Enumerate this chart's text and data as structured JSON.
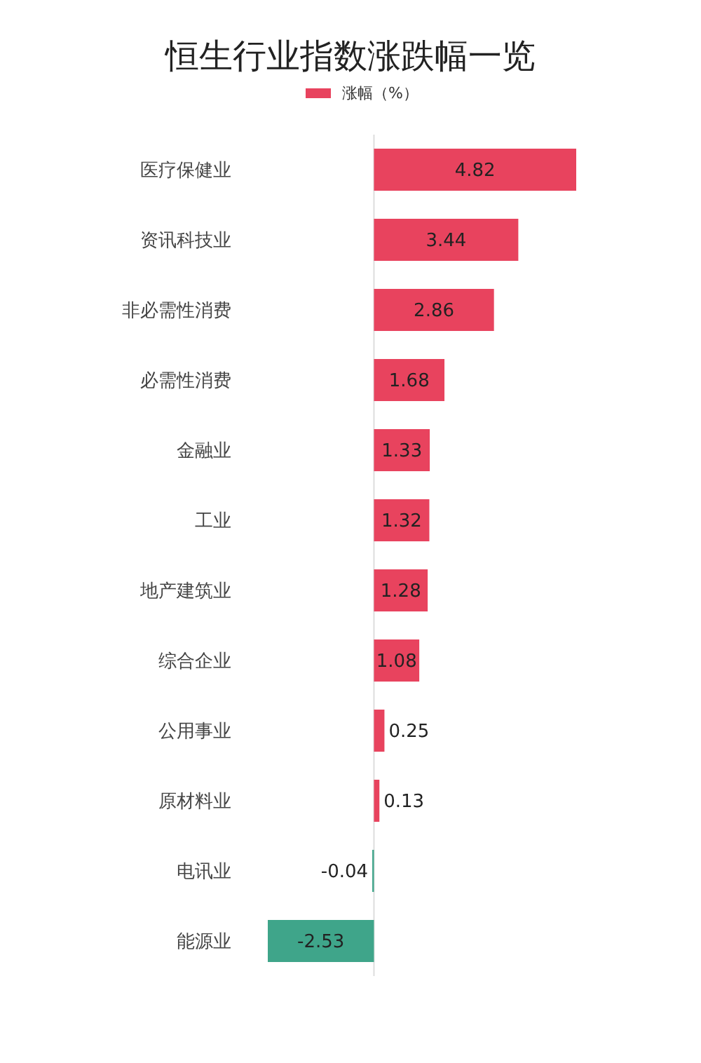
{
  "chart_data": {
    "type": "bar",
    "orientation": "horizontal",
    "title": "恒生行业指数涨跌幅一览",
    "categories": [
      "医疗保健业",
      "资讯科技业",
      "非必需性消费",
      "必需性消费",
      "金融业",
      "工业",
      "地产建筑业",
      "综合企业",
      "公用事业",
      "原材料业",
      "电讯业",
      "能源业"
    ],
    "series": [
      {
        "name": "涨幅（%）",
        "color": "#e8435e",
        "colors": [
          "#e8435e",
          "#e8435e",
          "#e8435e",
          "#e8435e",
          "#e8435e",
          "#e8435e",
          "#e8435e",
          "#e8435e",
          "#e8435e",
          "#e8435e",
          "#3fa58a",
          "#3fa58a"
        ],
        "values": [
          4.82,
          3.44,
          2.86,
          1.68,
          1.33,
          1.32,
          1.28,
          1.08,
          0.25,
          0.13,
          -0.04,
          -2.53
        ]
      }
    ],
    "data_labels": true,
    "legend": "top",
    "grid": false
  }
}
